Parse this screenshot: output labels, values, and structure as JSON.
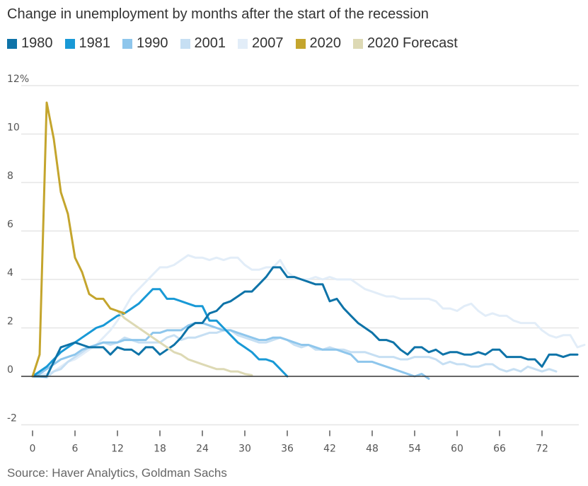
{
  "chart_data": {
    "type": "line",
    "title": "Change in unemployment by months after the start of the recession",
    "xlabel": "",
    "ylabel": "",
    "y_unit_label": "12%",
    "xlim": [
      -1,
      78
    ],
    "ylim": [
      -2,
      12
    ],
    "x_ticks": [
      0,
      6,
      12,
      18,
      24,
      30,
      36,
      42,
      48,
      54,
      60,
      66,
      72
    ],
    "x_tick_labels": [
      "0",
      "6",
      "12",
      "18",
      "24",
      "30",
      "36",
      "42",
      "48",
      "54",
      "60",
      "66",
      "72"
    ],
    "y_ticks": [
      -2,
      0,
      2,
      4,
      6,
      8,
      10,
      12
    ],
    "y_tick_labels": [
      "-2",
      "0",
      "2",
      "4",
      "6",
      "8",
      "10",
      "12%"
    ],
    "grid": "horizontal",
    "legend_position": "top-left",
    "series": [
      {
        "name": "2007",
        "color": "#e2edf8",
        "x_start": 0,
        "values": [
          0,
          0.1,
          0.1,
          0.2,
          0.4,
          0.6,
          0.7,
          0.9,
          1.1,
          1.3,
          1.6,
          1.9,
          2.3,
          2.8,
          3.3,
          3.6,
          3.9,
          4.2,
          4.5,
          4.5,
          4.6,
          4.8,
          5.0,
          4.9,
          4.9,
          4.8,
          4.9,
          4.8,
          4.9,
          4.9,
          4.6,
          4.4,
          4.4,
          4.5,
          4.5,
          4.8,
          4.3,
          4.1,
          4.0,
          4.0,
          4.1,
          4.0,
          4.1,
          4.0,
          4.0,
          4.0,
          3.8,
          3.6,
          3.5,
          3.4,
          3.3,
          3.3,
          3.2,
          3.2,
          3.2,
          3.2,
          3.2,
          3.1,
          2.8,
          2.8,
          2.7,
          2.9,
          3.0,
          2.7,
          2.5,
          2.6,
          2.5,
          2.5,
          2.3,
          2.2,
          2.2,
          2.2,
          1.9,
          1.7,
          1.6,
          1.7,
          1.7,
          1.2,
          1.3
        ]
      },
      {
        "name": "2001",
        "color": "#c6dff3",
        "x_start": 0,
        "values": [
          0,
          0,
          -0.05,
          0.2,
          0.3,
          0.6,
          0.8,
          1.0,
          1.2,
          1.3,
          1.4,
          1.3,
          1.4,
          1.6,
          1.5,
          1.4,
          1.4,
          1.4,
          1.4,
          1.6,
          1.7,
          1.5,
          1.6,
          1.6,
          1.7,
          1.8,
          1.8,
          1.9,
          1.9,
          1.7,
          1.6,
          1.5,
          1.4,
          1.4,
          1.5,
          1.6,
          1.5,
          1.3,
          1.2,
          1.3,
          1.1,
          1.1,
          1.2,
          1.1,
          1.1,
          1.0,
          1.0,
          1.0,
          0.9,
          0.8,
          0.8,
          0.8,
          0.7,
          0.7,
          0.8,
          0.8,
          0.8,
          0.7,
          0.5,
          0.6,
          0.5,
          0.5,
          0.4,
          0.4,
          0.5,
          0.5,
          0.3,
          0.2,
          0.3,
          0.2,
          0.4,
          0.3,
          0.2,
          0.3,
          0.2
        ]
      },
      {
        "name": "1990",
        "color": "#8ec6ec",
        "x_start": 0,
        "values": [
          0,
          0.1,
          0.3,
          0.5,
          0.7,
          0.8,
          0.9,
          1.1,
          1.2,
          1.3,
          1.4,
          1.4,
          1.4,
          1.5,
          1.5,
          1.5,
          1.5,
          1.8,
          1.8,
          1.9,
          1.9,
          1.9,
          2.1,
          2.2,
          2.2,
          2.1,
          2.0,
          1.9,
          1.9,
          1.8,
          1.7,
          1.6,
          1.5,
          1.5,
          1.6,
          1.6,
          1.5,
          1.4,
          1.3,
          1.3,
          1.2,
          1.1,
          1.1,
          1.1,
          1.0,
          0.9,
          0.6,
          0.6,
          0.6,
          0.5,
          0.4,
          0.3,
          0.2,
          0.1,
          0.0,
          0.1,
          -0.1
        ]
      },
      {
        "name": "1981",
        "color": "#1899d6",
        "x_start": 0,
        "values": [
          0,
          0.2,
          0.4,
          0.7,
          1.0,
          1.2,
          1.4,
          1.6,
          1.8,
          2.0,
          2.1,
          2.3,
          2.5,
          2.6,
          2.8,
          3.0,
          3.3,
          3.6,
          3.6,
          3.2,
          3.2,
          3.1,
          3.0,
          2.9,
          2.9,
          2.3,
          2.3,
          2.0,
          1.7,
          1.4,
          1.2,
          1.0,
          0.7,
          0.7,
          0.6,
          0.3,
          0.0
        ]
      },
      {
        "name": "1980",
        "color": "#0e73a8",
        "x_start": 0,
        "values": [
          0,
          0,
          0,
          0.6,
          1.2,
          1.3,
          1.4,
          1.3,
          1.2,
          1.2,
          1.2,
          0.9,
          1.2,
          1.1,
          1.1,
          0.9,
          1.2,
          1.2,
          0.9,
          1.1,
          1.3,
          1.6,
          2.0,
          2.2,
          2.2,
          2.6,
          2.7,
          3.0,
          3.1,
          3.3,
          3.5,
          3.5,
          3.8,
          4.1,
          4.5,
          4.5,
          4.1,
          4.1,
          4.0,
          3.9,
          3.8,
          3.8,
          3.1,
          3.2,
          2.8,
          2.5,
          2.2,
          2.0,
          1.8,
          1.5,
          1.5,
          1.4,
          1.1,
          0.9,
          1.2,
          1.2,
          1.0,
          1.1,
          0.9,
          1.0,
          1.0,
          0.9,
          0.9,
          1.0,
          0.9,
          1.1,
          1.1,
          0.8,
          0.8,
          0.8,
          0.7,
          0.7,
          0.4,
          0.9,
          0.9,
          0.8,
          0.9,
          0.9
        ]
      },
      {
        "name": "2020 Forecast",
        "color": "#ddd9b4",
        "x_start": 12,
        "values": [
          2.7,
          2.4,
          2.2,
          2.0,
          1.8,
          1.6,
          1.4,
          1.2,
          1.0,
          0.9,
          0.7,
          0.6,
          0.5,
          0.4,
          0.3,
          0.3,
          0.2,
          0.2,
          0.1,
          0.05
        ]
      },
      {
        "name": "2020",
        "color": "#c4a52d",
        "x_start": 0,
        "values": [
          0,
          0.9,
          11.3,
          9.8,
          7.6,
          6.7,
          4.9,
          4.3,
          3.4,
          3.2,
          3.2,
          2.8,
          2.7,
          2.6
        ]
      }
    ]
  },
  "legend": [
    {
      "label": "1980",
      "color": "#0e73a8"
    },
    {
      "label": "1981",
      "color": "#1899d6"
    },
    {
      "label": "1990",
      "color": "#8ec6ec"
    },
    {
      "label": "2001",
      "color": "#c6dff3"
    },
    {
      "label": "2007",
      "color": "#e2edf8"
    },
    {
      "label": "2020",
      "color": "#c4a52d"
    },
    {
      "label": "2020 Forecast",
      "color": "#ddd9b4"
    }
  ],
  "source": "Source: Haver Analytics, Goldman Sachs"
}
